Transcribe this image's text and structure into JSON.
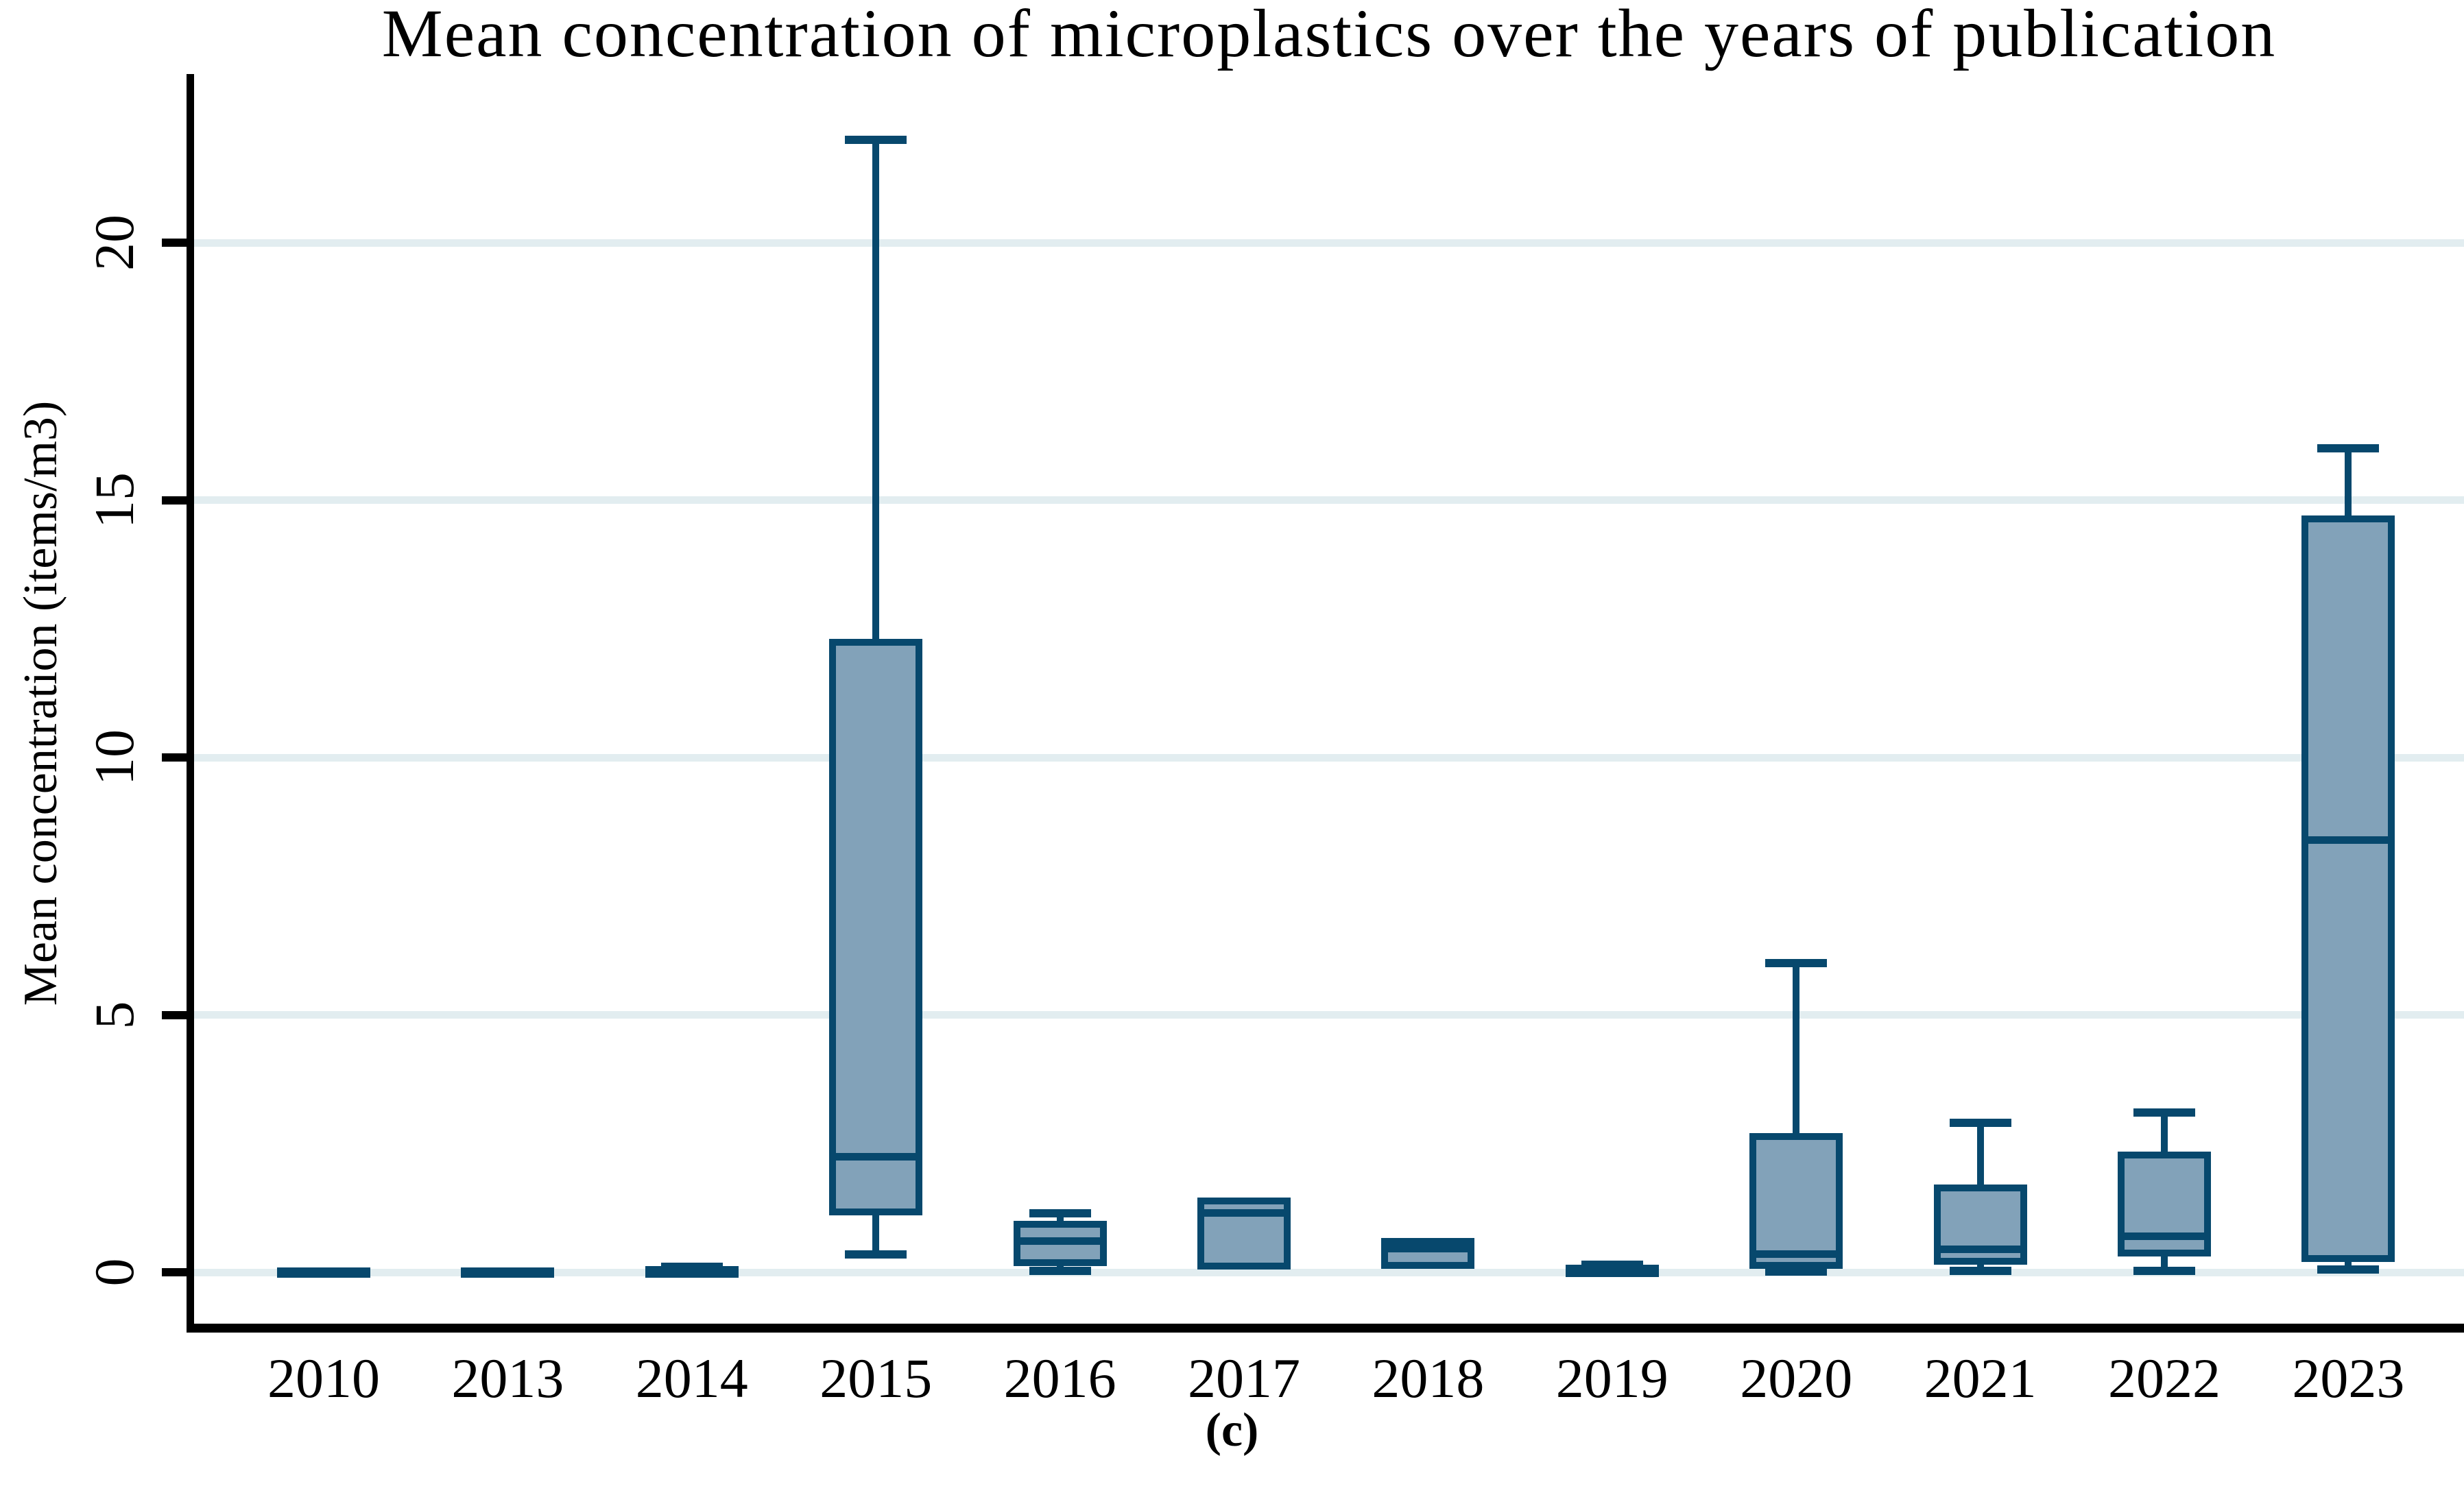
{
  "chart_data": {
    "type": "boxplot",
    "title": "Mean concentration of microplastics over the years of publication",
    "xlabel": "",
    "ylabel": "Mean concentration (items/m3)",
    "caption": "(c)",
    "categories": [
      "2010",
      "2013",
      "2014",
      "2015",
      "2016",
      "2017",
      "2018",
      "2019",
      "2020",
      "2021",
      "2022",
      "2023"
    ],
    "yticks": [
      0,
      5,
      10,
      15,
      20
    ],
    "ylim": [
      0,
      23.3
    ],
    "grid": true,
    "legend": "none",
    "series": [
      {
        "year": "2010",
        "whisker_low": 0,
        "q1": 0,
        "median": 0.01,
        "q3": 0.02,
        "whisker_high": 0.02
      },
      {
        "year": "2013",
        "whisker_low": 0,
        "q1": 0,
        "median": 0.01,
        "q3": 0.02,
        "whisker_high": 0.02
      },
      {
        "year": "2014",
        "whisker_low": 0,
        "q1": 0,
        "median": 0.02,
        "q3": 0.05,
        "whisker_high": 0.1
      },
      {
        "year": "2015",
        "whisker_low": 0.35,
        "q1": 1.1,
        "median": 2.25,
        "q3": 12.3,
        "whisker_high": 22.0
      },
      {
        "year": "2016",
        "whisker_low": 0.03,
        "q1": 0.12,
        "median": 0.6,
        "q3": 1.0,
        "whisker_high": 1.15
      },
      {
        "year": "2017",
        "whisker_low": 0.05,
        "q1": 0.05,
        "median": 1.15,
        "q3": 1.45,
        "whisker_high": 1.45
      },
      {
        "year": "2018",
        "whisker_low": 0.05,
        "q1": 0.07,
        "median": 0.62,
        "q3": 0.66,
        "whisker_high": 0.66
      },
      {
        "year": "2019",
        "whisker_low": 0,
        "q1": 0.01,
        "median": 0.02,
        "q3": 0.08,
        "whisker_high": 0.15
      },
      {
        "year": "2020",
        "whisker_low": 0.01,
        "q1": 0.06,
        "median": 0.35,
        "q3": 2.7,
        "whisker_high": 6.0
      },
      {
        "year": "2021",
        "whisker_low": 0.02,
        "q1": 0.15,
        "median": 0.45,
        "q3": 1.7,
        "whisker_high": 2.9
      },
      {
        "year": "2022",
        "whisker_low": 0.02,
        "q1": 0.3,
        "median": 0.7,
        "q3": 2.35,
        "whisker_high": 3.1
      },
      {
        "year": "2023",
        "whisker_low": 0.05,
        "q1": 0.2,
        "median": 8.4,
        "q3": 14.7,
        "whisker_high": 16.0
      }
    ],
    "colors": {
      "box_fill": "#82a2b9",
      "box_stroke": "#07486d",
      "gridline": "#e2edf0",
      "axis": "#000000",
      "background": "#ffffff"
    }
  }
}
